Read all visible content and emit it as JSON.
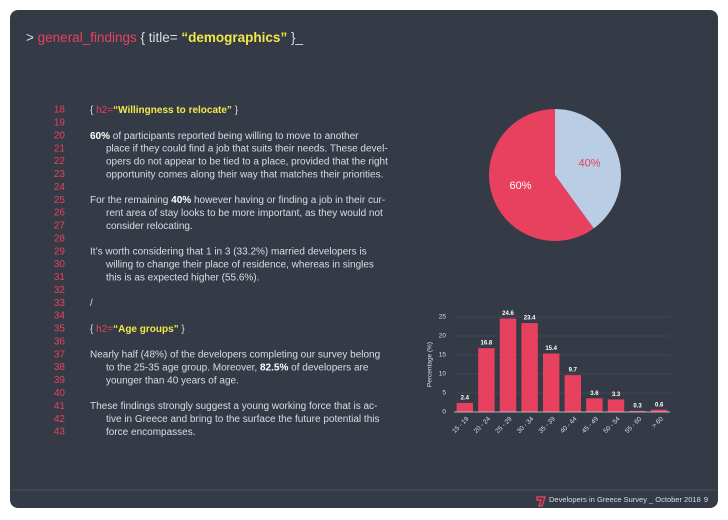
{
  "header": {
    "parts": [
      {
        "t": ">",
        "style": "plain"
      },
      {
        "t": "general_findings",
        "style": "pink"
      },
      {
        "t": "{ title=",
        "style": "plain"
      },
      {
        "t": "“demographics”",
        "style": "yellow"
      },
      {
        "t": "}_",
        "style": "plain"
      }
    ]
  },
  "body": [
    {
      "n": 18,
      "parts": [
        {
          "t": "{ ",
          "style": "plain"
        },
        {
          "t": "h2=",
          "style": "pink"
        },
        {
          "t": "“Willingness to relocate”",
          "style": "yellow"
        },
        {
          "t": " }",
          "style": "plain"
        }
      ]
    },
    {
      "n": 19
    },
    {
      "n": 20,
      "parts": [
        {
          "t": "60%",
          "style": "bold"
        },
        {
          "t": " of participants reported being willing to move to another",
          "style": "plain"
        }
      ]
    },
    {
      "n": 21,
      "indent": true,
      "parts": [
        {
          "t": "place if they could find a job that suits their needs. These devel-",
          "style": "plain"
        }
      ]
    },
    {
      "n": 22,
      "indent": true,
      "parts": [
        {
          "t": "opers do not appear to be tied to a place, provided that the right",
          "style": "plain"
        }
      ]
    },
    {
      "n": 23,
      "indent": true,
      "parts": [
        {
          "t": "opportunity comes along their way that matches their priorities.",
          "style": "plain"
        }
      ]
    },
    {
      "n": 24
    },
    {
      "n": 25,
      "parts": [
        {
          "t": "For the remaining ",
          "style": "plain"
        },
        {
          "t": "40%",
          "style": "bold"
        },
        {
          "t": " however having or finding a job in their cur-",
          "style": "plain"
        }
      ]
    },
    {
      "n": 26,
      "indent": true,
      "parts": [
        {
          "t": "rent area of stay looks to be more important, as they would not",
          "style": "plain"
        }
      ]
    },
    {
      "n": 27,
      "indent": true,
      "parts": [
        {
          "t": "consider relocating.",
          "style": "plain"
        }
      ]
    },
    {
      "n": 28
    },
    {
      "n": 29,
      "parts": [
        {
          "t": "It’s worth considering that 1 in 3 (33.2%) married developers is",
          "style": "plain"
        }
      ]
    },
    {
      "n": 30,
      "indent": true,
      "parts": [
        {
          "t": "willing to change their place of residence, whereas in singles",
          "style": "plain"
        }
      ]
    },
    {
      "n": 31,
      "indent": true,
      "parts": [
        {
          "t": "this is as expected higher (55.6%).",
          "style": "plain"
        }
      ]
    },
    {
      "n": 32
    },
    {
      "n": 33,
      "parts": [
        {
          "t": "/",
          "style": "plain"
        }
      ]
    },
    {
      "n": 34
    },
    {
      "n": 35,
      "parts": [
        {
          "t": "{ ",
          "style": "plain"
        },
        {
          "t": "h2=",
          "style": "pink"
        },
        {
          "t": "“Age groups”",
          "style": "yellow"
        },
        {
          "t": " }",
          "style": "plain"
        }
      ]
    },
    {
      "n": 36
    },
    {
      "n": 37,
      "parts": [
        {
          "t": "Nearly half (48%) of the developers completing our survey belong",
          "style": "plain"
        }
      ]
    },
    {
      "n": 38,
      "indent": true,
      "parts": [
        {
          "t": "to the 25-35 age group. Moreover, ",
          "style": "plain"
        },
        {
          "t": "82.5%",
          "style": "bold"
        },
        {
          "t": " of developers are",
          "style": "plain"
        }
      ]
    },
    {
      "n": 39,
      "indent": true,
      "parts": [
        {
          "t": "younger than 40 years of age.",
          "style": "plain"
        }
      ]
    },
    {
      "n": 40
    },
    {
      "n": 41,
      "parts": [
        {
          "t": "These findings strongly suggest a young working force that is ac-",
          "style": "plain"
        }
      ]
    },
    {
      "n": 42,
      "indent": true,
      "parts": [
        {
          "t": "tive in Greece and bring to the surface the future potential this",
          "style": "plain"
        }
      ]
    },
    {
      "n": 43,
      "indent": true,
      "parts": [
        {
          "t": "force encompasses.",
          "style": "plain"
        }
      ]
    }
  ],
  "chart_data": [
    {
      "type": "pie",
      "values": [
        60,
        40
      ],
      "value_labels": [
        "60%",
        "40%"
      ],
      "colors": [
        "#e8405f",
        "#b9cde4"
      ]
    },
    {
      "type": "bar",
      "ylabel": "Percentage (%)",
      "categories": [
        "15 - 19",
        "20 - 24",
        "25 - 29",
        "30 - 34",
        "35 - 39",
        "40 - 44",
        "45 - 49",
        "50 - 54",
        "55 - 60",
        "> 60"
      ],
      "values": [
        2.4,
        16.8,
        24.6,
        23.4,
        15.4,
        9.7,
        3.6,
        3.3,
        0.3,
        0.6
      ],
      "color": "#e8405f",
      "ylim": [
        0,
        25
      ],
      "yticks": [
        0,
        5,
        10,
        15,
        20,
        25
      ],
      "grid": true
    }
  ],
  "footer": {
    "title": "Developers in Greece Survey _ October 2018",
    "page": "9"
  }
}
